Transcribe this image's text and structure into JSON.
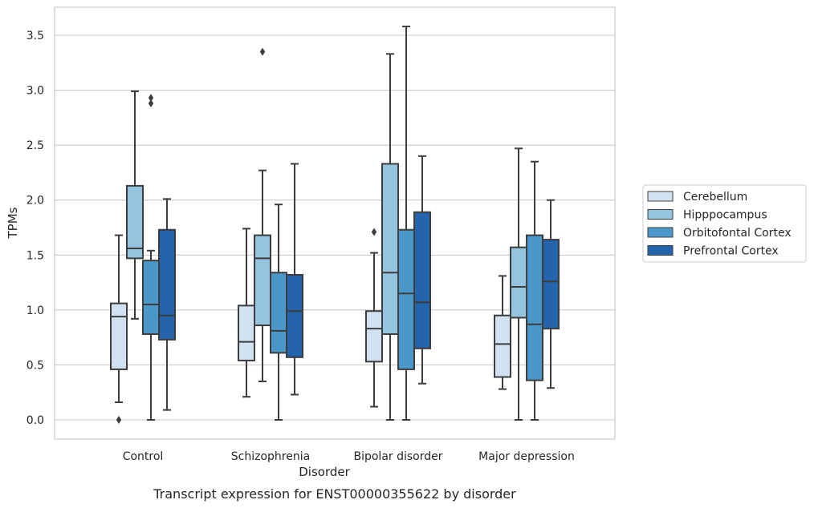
{
  "chart_data": {
    "type": "box",
    "caption": "Transcript expression for ENST00000355622 by disorder",
    "xlabel": "Disorder",
    "ylabel": "TPMs",
    "ylim": [
      -0.17,
      3.76
    ],
    "yticks": [
      0.0,
      0.5,
      1.0,
      1.5,
      2.0,
      2.5,
      3.0,
      3.5
    ],
    "ytick_labels": [
      "0.0",
      "0.5",
      "1.0",
      "1.5",
      "2.0",
      "2.5",
      "3.0",
      "3.5"
    ],
    "grid": "horizontal",
    "legend_position": "right",
    "categories": [
      "Control",
      "Schizophrenia",
      "Bipolar disorder",
      "Major depression"
    ],
    "series": [
      {
        "name": "Cerebellum",
        "color": "#d0e1f2",
        "boxes": [
          {
            "whislo": 0.16,
            "q1": 0.46,
            "med": 0.94,
            "q3": 1.06,
            "whishi": 1.68,
            "fliers": [
              0.0
            ]
          },
          {
            "whislo": 0.21,
            "q1": 0.54,
            "med": 0.71,
            "q3": 1.04,
            "whishi": 1.74,
            "fliers": []
          },
          {
            "whislo": 0.12,
            "q1": 0.53,
            "med": 0.83,
            "q3": 0.99,
            "whishi": 1.52,
            "fliers": [
              1.71
            ]
          },
          {
            "whislo": 0.28,
            "q1": 0.39,
            "med": 0.69,
            "q3": 0.95,
            "whishi": 1.31,
            "fliers": []
          }
        ]
      },
      {
        "name": "Hipppocampus",
        "color": "#94c4df",
        "boxes": [
          {
            "whislo": 0.92,
            "q1": 1.47,
            "med": 1.56,
            "q3": 2.13,
            "whishi": 2.99,
            "fliers": []
          },
          {
            "whislo": 0.35,
            "q1": 0.86,
            "med": 1.47,
            "q3": 1.68,
            "whishi": 2.27,
            "fliers": [
              3.35
            ]
          },
          {
            "whislo": 0.0,
            "q1": 0.78,
            "med": 1.34,
            "q3": 2.33,
            "whishi": 3.33,
            "fliers": []
          },
          {
            "whislo": 0.0,
            "q1": 0.93,
            "med": 1.21,
            "q3": 1.57,
            "whishi": 2.47,
            "fliers": []
          }
        ]
      },
      {
        "name": "Orbitofontal Cortex",
        "color": "#4a98c9",
        "boxes": [
          {
            "whislo": 0.0,
            "q1": 0.78,
            "med": 1.05,
            "q3": 1.45,
            "whishi": 1.54,
            "fliers": [
              2.88,
              2.93
            ]
          },
          {
            "whislo": 0.0,
            "q1": 0.61,
            "med": 0.81,
            "q3": 1.34,
            "whishi": 1.96,
            "fliers": []
          },
          {
            "whislo": 0.0,
            "q1": 0.46,
            "med": 1.15,
            "q3": 1.73,
            "whishi": 3.58,
            "fliers": []
          },
          {
            "whislo": 0.0,
            "q1": 0.36,
            "med": 0.87,
            "q3": 1.68,
            "whishi": 2.35,
            "fliers": []
          }
        ]
      },
      {
        "name": "Prefrontal Cortex",
        "color": "#2364aa",
        "boxes": [
          {
            "whislo": 0.09,
            "q1": 0.73,
            "med": 0.95,
            "q3": 1.73,
            "whishi": 2.01,
            "fliers": []
          },
          {
            "whislo": 0.23,
            "q1": 0.57,
            "med": 0.99,
            "q3": 1.32,
            "whishi": 2.33,
            "fliers": []
          },
          {
            "whislo": 0.33,
            "q1": 0.65,
            "med": 1.07,
            "q3": 1.89,
            "whishi": 2.4,
            "fliers": []
          },
          {
            "whislo": 0.29,
            "q1": 0.83,
            "med": 1.26,
            "q3": 1.64,
            "whishi": 2.0,
            "fliers": []
          }
        ]
      }
    ]
  }
}
